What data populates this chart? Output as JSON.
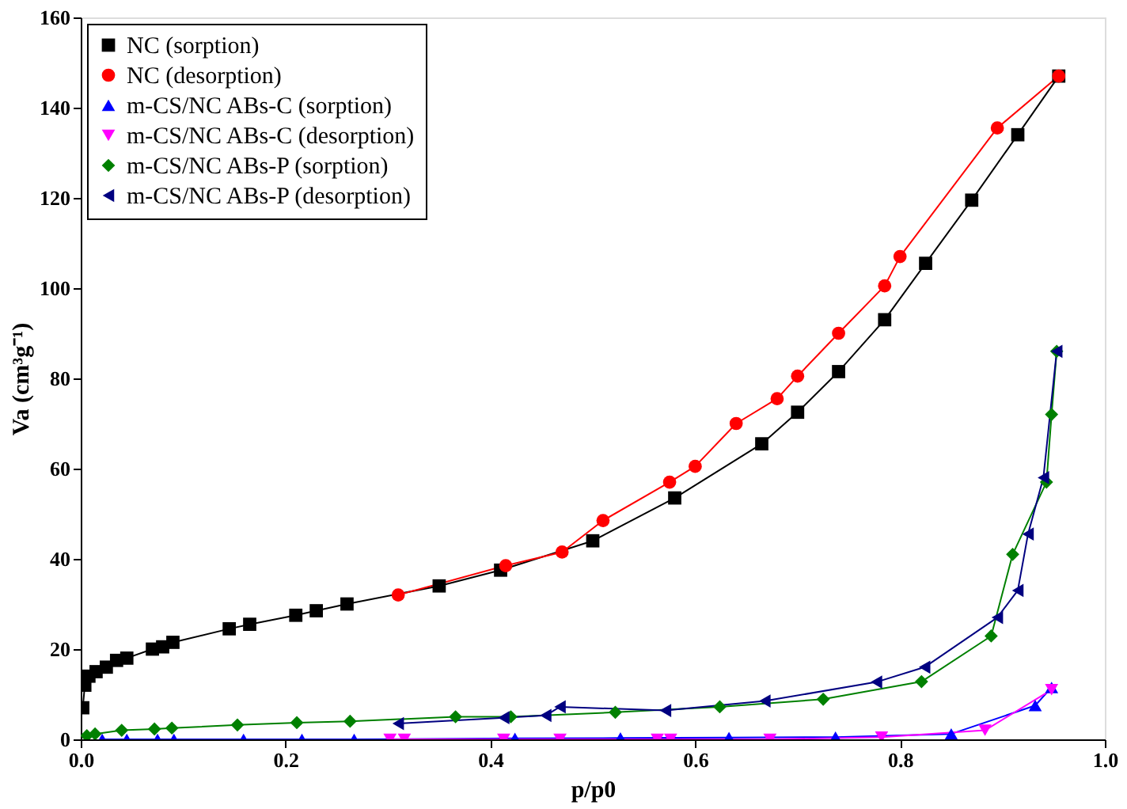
{
  "chart_data": {
    "type": "line",
    "xlabel": "p/p0",
    "ylabel": "Va (cm³g⁻¹)",
    "xlim": [
      0,
      1
    ],
    "ylim": [
      0,
      160
    ],
    "xticks": [
      {
        "value": 0,
        "label": "0.0"
      },
      {
        "value": 0.2,
        "label": "0.2"
      },
      {
        "value": 0.4,
        "label": "0.4"
      },
      {
        "value": 0.6,
        "label": "0.6"
      },
      {
        "value": 0.8,
        "label": "0.8"
      },
      {
        "value": 1,
        "label": "1.0"
      }
    ],
    "yticks": [
      0,
      20,
      40,
      60,
      80,
      100,
      120,
      140,
      160
    ],
    "grid": false,
    "legend": "top left",
    "series": [
      {
        "name": "NC (sorption)",
        "color": "#000000",
        "marker": "square",
        "x": [
          0.002,
          0.004,
          0.008,
          0.015,
          0.025,
          0.035,
          0.045,
          0.07,
          0.08,
          0.09,
          0.145,
          0.165,
          0.21,
          0.23,
          0.26,
          0.35,
          0.41,
          0.5,
          0.58,
          0.665,
          0.7,
          0.74,
          0.785,
          0.825,
          0.87,
          0.915,
          0.955
        ],
        "values": [
          7,
          12,
          14,
          15,
          16,
          17.5,
          18,
          20,
          20.5,
          21.5,
          24.5,
          25.5,
          27.5,
          28.5,
          30,
          34,
          37.5,
          44,
          53.5,
          65.5,
          72.5,
          81.5,
          93,
          105.5,
          119.5,
          134,
          147
        ]
      },
      {
        "name": "NC (desorption)",
        "color": "#ff0000",
        "marker": "circle",
        "x": [
          0.955,
          0.895,
          0.8,
          0.785,
          0.74,
          0.7,
          0.68,
          0.64,
          0.6,
          0.575,
          0.51,
          0.47,
          0.415,
          0.31
        ],
        "values": [
          147,
          135.5,
          107,
          100.5,
          90,
          80.5,
          75.5,
          70,
          60.5,
          57,
          48.5,
          41.5,
          38.5,
          32
        ]
      },
      {
        "name": "m-CS/NC ABs-C (sorption)",
        "color": "#0000ff",
        "marker": "triangle-up",
        "x": [
          0.021,
          0.045,
          0.075,
          0.091,
          0.159,
          0.216,
          0.267,
          0.424,
          0.527,
          0.633,
          0.737,
          0.85,
          0.932,
          0.948
        ],
        "values": [
          0,
          0,
          0,
          0,
          0,
          0,
          0,
          0.2,
          0.3,
          0.4,
          0.5,
          1.2,
          7.5,
          11.5
        ]
      },
      {
        "name": "m-CS/NC ABs-C (desorption)",
        "color": "#ff00ff",
        "marker": "triangle-down",
        "x": [
          0.948,
          0.883,
          0.782,
          0.673,
          0.576,
          0.563,
          0.468,
          0.413,
          0.316,
          0.302
        ],
        "values": [
          11,
          2,
          0.5,
          0,
          0,
          0,
          0,
          0,
          0,
          0
        ]
      },
      {
        "name": "m-CS/NC ABs-P (sorption)",
        "color": "#008000",
        "marker": "diamond",
        "x": [
          0.006,
          0.014,
          0.04,
          0.072,
          0.089,
          0.153,
          0.211,
          0.263,
          0.366,
          0.42,
          0.522,
          0.624,
          0.725,
          0.821,
          0.889,
          0.91,
          0.943,
          0.948,
          0.953
        ],
        "values": [
          0.8,
          1.2,
          2,
          2.3,
          2.5,
          3.2,
          3.7,
          4,
          5,
          5,
          6,
          7.2,
          8.9,
          12.8,
          22.9,
          41,
          57,
          72,
          86
        ]
      },
      {
        "name": "m-CS/NC ABs-P (desorption)",
        "color": "#000080",
        "marker": "triangle-left",
        "x": [
          0.953,
          0.94,
          0.925,
          0.915,
          0.895,
          0.824,
          0.777,
          0.668,
          0.571,
          0.468,
          0.454,
          0.413,
          0.31
        ],
        "values": [
          86,
          58,
          45.5,
          33,
          27,
          16,
          12.7,
          8.5,
          6.4,
          7.2,
          5.3,
          4.8,
          3.5
        ]
      }
    ]
  }
}
